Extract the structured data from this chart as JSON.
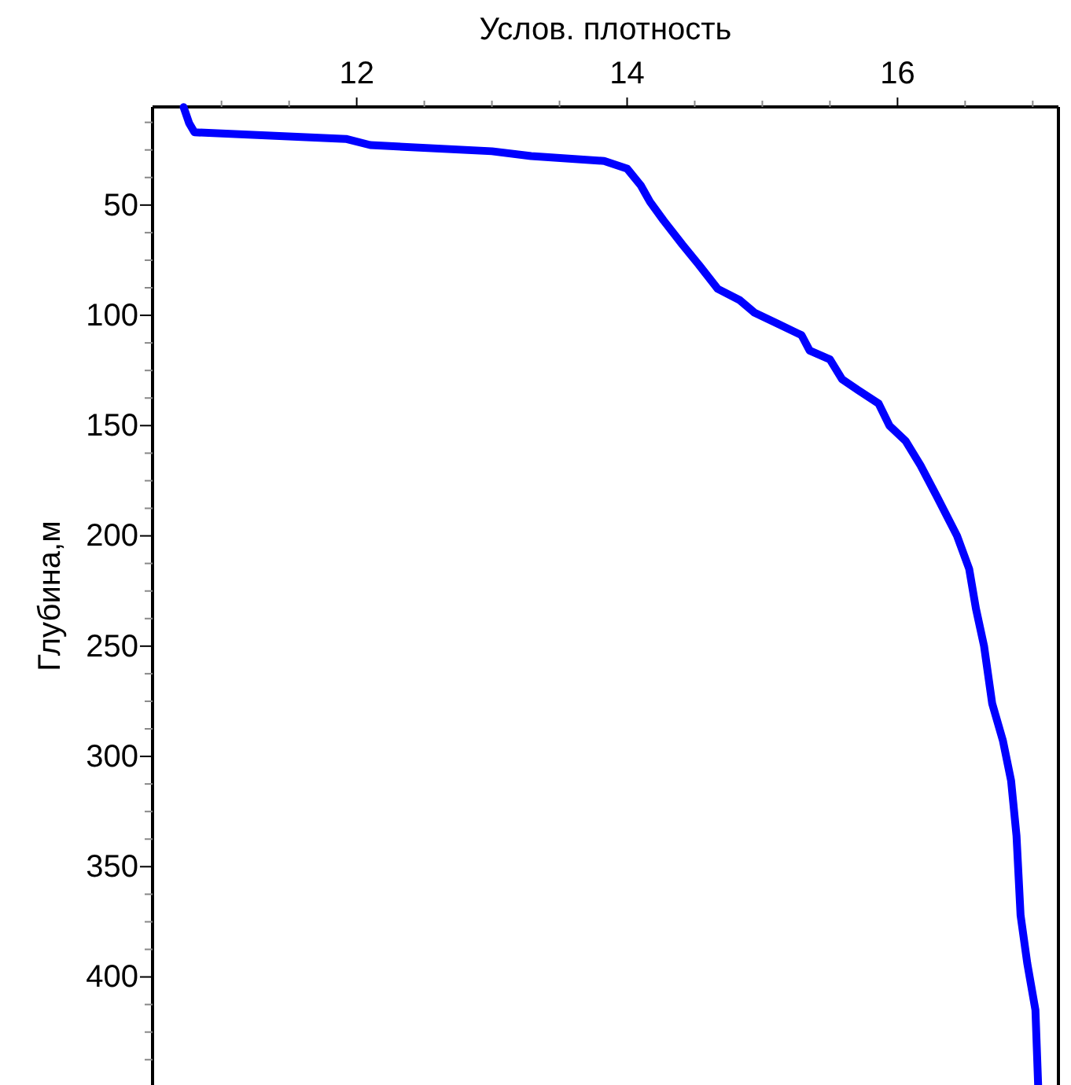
{
  "chart_data": {
    "type": "line",
    "xlabel": "Услов. плотность",
    "ylabel": "Глубина,м",
    "xlim": [
      10.49,
      17.19
    ],
    "ylim": [
      449,
      5.5
    ],
    "xticks": [
      {
        "value": 11,
        "label": null
      },
      {
        "value": 11.5,
        "label": null
      },
      12,
      {
        "value": 12.5,
        "label": null
      },
      {
        "value": 13,
        "label": null
      },
      {
        "value": 13.5,
        "label": null
      },
      14,
      {
        "value": 14.5,
        "label": null
      },
      {
        "value": 15,
        "label": null
      },
      {
        "value": 15.5,
        "label": null
      },
      16,
      {
        "value": 16.5,
        "label": null
      },
      {
        "value": 17,
        "label": null
      }
    ],
    "yticks": [
      {
        "value": 12.5,
        "label": null
      },
      {
        "value": 25,
        "label": null
      },
      {
        "value": 37.5,
        "label": null
      },
      50,
      {
        "value": 62.5,
        "label": null
      },
      {
        "value": 75,
        "label": null
      },
      {
        "value": 87.5,
        "label": null
      },
      100,
      {
        "value": 112.5,
        "label": null
      },
      {
        "value": 125,
        "label": null
      },
      {
        "value": 137.5,
        "label": null
      },
      150,
      {
        "value": 162.5,
        "label": null
      },
      {
        "value": 175,
        "label": null
      },
      {
        "value": 187.5,
        "label": null
      },
      200,
      {
        "value": 212.5,
        "label": null
      },
      {
        "value": 225,
        "label": null
      },
      {
        "value": 237.5,
        "label": null
      },
      250,
      {
        "value": 262.5,
        "label": null
      },
      {
        "value": 275,
        "label": null
      },
      {
        "value": 287.5,
        "label": null
      },
      300,
      {
        "value": 312.5,
        "label": null
      },
      {
        "value": 325,
        "label": null
      },
      {
        "value": 337.5,
        "label": null
      },
      350,
      {
        "value": 362.5,
        "label": null
      },
      {
        "value": 375,
        "label": null
      },
      {
        "value": 387.5,
        "label": null
      },
      400,
      {
        "value": 412.5,
        "label": null
      },
      {
        "value": 425,
        "label": null
      },
      {
        "value": 437.5,
        "label": null
      }
    ],
    "series": [
      {
        "color": "#0000ff",
        "x": [
          10.72,
          10.76,
          10.8,
          11.92,
          12.1,
          13.0,
          13.29,
          13.83,
          14.0,
          14.1,
          14.17,
          14.27,
          14.41,
          14.53,
          14.67,
          14.83,
          14.94,
          15.12,
          15.29,
          15.35,
          15.5,
          15.59,
          15.71,
          15.86,
          15.94,
          16.06,
          16.17,
          16.29,
          16.44,
          16.53,
          16.58,
          16.64,
          16.7,
          16.78,
          16.84,
          16.88,
          16.91,
          16.96,
          17.02,
          17.04
        ],
        "values": [
          5.6,
          12.8,
          17,
          20,
          22.8,
          25.6,
          27.8,
          30,
          33.5,
          41,
          48.6,
          57,
          68,
          77,
          88,
          93,
          98.7,
          104,
          109,
          116,
          120,
          129,
          134,
          140,
          150,
          157,
          168,
          182,
          200,
          215,
          233,
          250,
          276,
          293,
          311,
          336,
          372,
          394,
          415,
          449
        ]
      }
    ]
  }
}
